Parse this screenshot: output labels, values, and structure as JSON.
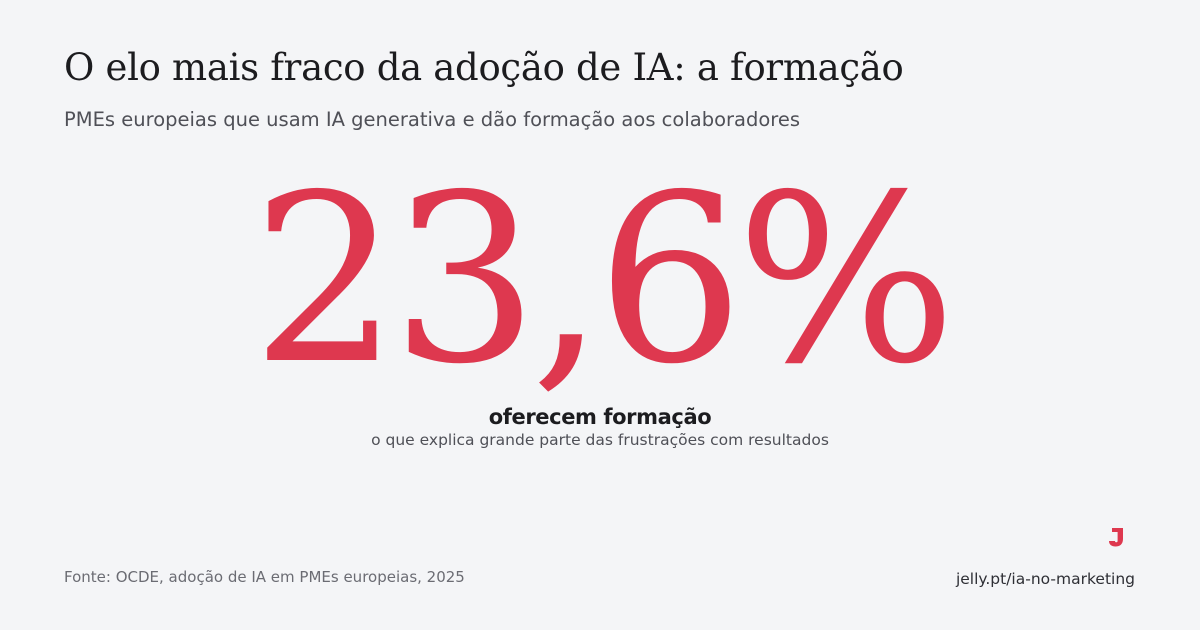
{
  "header": {
    "title": "O elo mais fraco da adoção de IA: a formação",
    "subtitle": "PMEs europeias que usam IA generativa e dão formação aos colaboradores"
  },
  "stat": {
    "value": "23,6%",
    "label": "oferecem formação",
    "caption": "o que explica grande parte das frustrações com resultados"
  },
  "footer": {
    "source": "Fonte: OCDE, adoção de IA em PMEs europeias, 2025",
    "link": "jelly.pt/ia-no-marketing",
    "logo_icon": "jelly-logo-icon"
  },
  "colors": {
    "accent": "#de384f",
    "background": "#f4f5f7",
    "text": "#1c1c1f",
    "muted": "#4f5057"
  }
}
